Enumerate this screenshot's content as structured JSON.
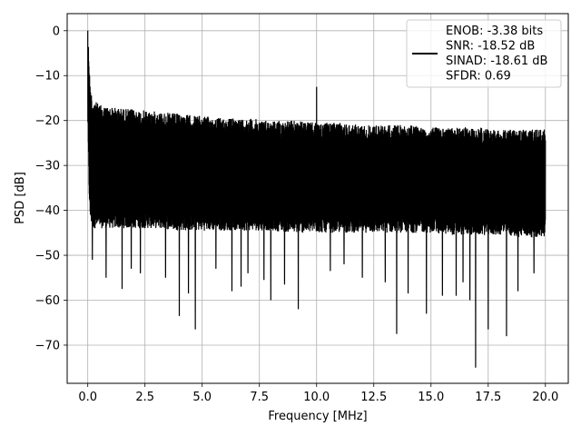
{
  "chart_data": {
    "type": "line",
    "xlabel": "Frequency [MHz]",
    "ylabel": "PSD [dB]",
    "xlim": [
      -0.9,
      21.0
    ],
    "ylim": [
      -78.5,
      3.8
    ],
    "xticks": [
      0.0,
      2.5,
      5.0,
      7.5,
      10.0,
      12.5,
      15.0,
      17.5,
      20.0
    ],
    "xtick_labels": [
      "0.0",
      "2.5",
      "5.0",
      "7.5",
      "10.0",
      "12.5",
      "15.0",
      "17.5",
      "20.0"
    ],
    "yticks": [
      0,
      -10,
      -20,
      -30,
      -40,
      -50,
      -60,
      -70
    ],
    "ytick_labels": [
      "0",
      "−10",
      "−20",
      "−30",
      "−40",
      "−50",
      "−60",
      "−70"
    ],
    "grid": true,
    "legend_position": "top-right",
    "series": [
      {
        "name": "ENOB: -3.38 bits\nSNR: -18.52 dB\nSINAD: -18.61 dB\nSFDR: 0.69",
        "color": "#000000",
        "x_range": [
          0.0,
          20.0
        ],
        "envelope": {
          "x": [
            0.0,
            0.05,
            0.1,
            0.2,
            0.5,
            1.0,
            2.0,
            3.0,
            4.0,
            5.0,
            6.0,
            7.0,
            8.0,
            9.0,
            10.0,
            11.0,
            12.0,
            13.0,
            14.0,
            15.0,
            16.0,
            17.0,
            18.0,
            19.0,
            20.0
          ],
          "upper": [
            0.0,
            -5.0,
            -12.0,
            -15.0,
            -16.5,
            -17.0,
            -17.5,
            -18.0,
            -18.5,
            -19.0,
            -19.5,
            -19.5,
            -20.0,
            -20.0,
            -20.5,
            -20.5,
            -21.0,
            -21.0,
            -21.0,
            -21.5,
            -21.5,
            -21.5,
            -22.0,
            -22.0,
            -22.0
          ],
          "lower": [
            -20.0,
            -35.0,
            -42.0,
            -44.0,
            -44.0,
            -44.0,
            -44.0,
            -44.0,
            -44.5,
            -44.5,
            -44.5,
            -44.5,
            -44.5,
            -45.0,
            -45.0,
            -45.0,
            -45.0,
            -45.0,
            -45.0,
            -45.0,
            -45.5,
            -45.5,
            -45.5,
            -46.0,
            -46.0
          ]
        },
        "peaks": [
          {
            "x": 0.0,
            "y": 0.0
          },
          {
            "x": 10.0,
            "y": -12.5
          }
        ],
        "dips": [
          {
            "x": 0.2,
            "y": -51.0
          },
          {
            "x": 0.8,
            "y": -55.0
          },
          {
            "x": 1.5,
            "y": -57.5
          },
          {
            "x": 1.9,
            "y": -53.0
          },
          {
            "x": 2.3,
            "y": -54.0
          },
          {
            "x": 3.4,
            "y": -55.0
          },
          {
            "x": 4.0,
            "y": -63.5
          },
          {
            "x": 4.4,
            "y": -58.5
          },
          {
            "x": 4.7,
            "y": -66.5
          },
          {
            "x": 5.6,
            "y": -53.0
          },
          {
            "x": 6.3,
            "y": -58.0
          },
          {
            "x": 6.7,
            "y": -57.0
          },
          {
            "x": 7.0,
            "y": -54.0
          },
          {
            "x": 7.7,
            "y": -55.5
          },
          {
            "x": 8.0,
            "y": -60.0
          },
          {
            "x": 8.6,
            "y": -56.5
          },
          {
            "x": 9.2,
            "y": -62.0
          },
          {
            "x": 10.0,
            "y": -54.5
          },
          {
            "x": 10.6,
            "y": -53.5
          },
          {
            "x": 11.2,
            "y": -52.0
          },
          {
            "x": 12.0,
            "y": -55.0
          },
          {
            "x": 13.0,
            "y": -56.0
          },
          {
            "x": 13.5,
            "y": -67.5
          },
          {
            "x": 14.0,
            "y": -58.5
          },
          {
            "x": 14.8,
            "y": -63.0
          },
          {
            "x": 15.5,
            "y": -59.0
          },
          {
            "x": 16.1,
            "y": -59.0
          },
          {
            "x": 16.4,
            "y": -56.0
          },
          {
            "x": 16.7,
            "y": -60.0
          },
          {
            "x": 16.95,
            "y": -75.0
          },
          {
            "x": 17.5,
            "y": -66.5
          },
          {
            "x": 18.3,
            "y": -68.0
          },
          {
            "x": 18.8,
            "y": -58.0
          },
          {
            "x": 19.5,
            "y": -54.0
          }
        ]
      }
    ]
  }
}
